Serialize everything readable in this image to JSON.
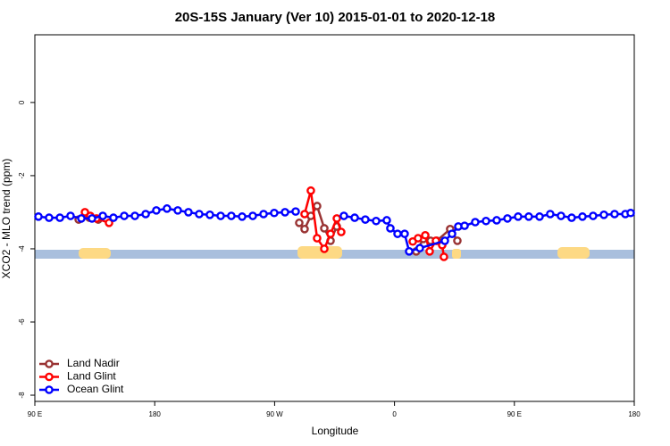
{
  "chart_data": {
    "type": "line",
    "title": "20S-15S January (Ver 10)   2015-01-01 to 2020-12-18",
    "xlabel": "Longitude",
    "ylabel": "XCO2 - MLO trend (ppm)",
    "xlim": [
      90,
      540
    ],
    "xticks": [
      {
        "value": 90,
        "label": "90 E"
      },
      180,
      {
        "value": 270,
        "label": "90 W"
      },
      {
        "value": 360,
        "label": "0"
      },
      {
        "value": 450,
        "label": "90 E"
      },
      {
        "value": 540,
        "label": "180"
      }
    ],
    "ylim": [
      -8.17,
      1.85
    ],
    "yticks": [
      -8,
      -6,
      -4,
      -2,
      0
    ],
    "legend": "lower left",
    "series": [
      {
        "name": "Land Nadir",
        "color": "#993333",
        "x": [
          122.9,
          131.0,
          137.6,
          null,
          288.5,
          292.5,
          297.2,
          301.9,
          307.3,
          312.0,
          316.7,
          null,
          376.3,
          381.7,
          387.1,
          391.8,
          401.8,
          407.2
        ],
        "values": [
          -3.2,
          -3.15,
          -3.2,
          null,
          -3.29,
          -3.46,
          -3.1,
          -2.83,
          -3.44,
          -3.78,
          -3.39,
          null,
          -4.07,
          -3.73,
          -3.78,
          -3.78,
          -3.46,
          -3.78
        ]
      },
      {
        "name": "Land Glint",
        "color": "#ff0000",
        "x": [
          127.6,
          131.6,
          136.3,
          145.7,
          null,
          292.5,
          297.2,
          301.9,
          307.3,
          312.0,
          316.7,
          320.0,
          null,
          373.7,
          377.7,
          383.1,
          386.4,
          391.1,
          395.8,
          397.1
        ],
        "values": [
          -3.0,
          -3.1,
          -3.17,
          -3.29,
          null,
          -3.05,
          -2.41,
          -3.71,
          -4.0,
          -3.59,
          -3.17,
          -3.54,
          null,
          -3.8,
          -3.71,
          -3.63,
          -4.07,
          -3.78,
          -3.9,
          -4.22
        ]
      },
      {
        "name": "Ocean Glint",
        "color": "#0000ff",
        "x": [
          92.7,
          100.7,
          108.8,
          116.8,
          124.9,
          132.9,
          141.0,
          149.0,
          157.1,
          165.1,
          173.2,
          181.2,
          189.2,
          197.3,
          205.3,
          213.4,
          221.4,
          229.5,
          237.5,
          245.6,
          253.6,
          261.7,
          269.7,
          277.8,
          285.8,
          null,
          322.0,
          330.1,
          338.1,
          346.2,
          354.2,
          356.9,
          362.3,
          367.6,
          371.0,
          379.0,
          397.8,
          403.2,
          407.9,
          412.6,
          420.6,
          428.7,
          436.7,
          444.8,
          452.8,
          460.8,
          468.9,
          476.9,
          485.0,
          493.0,
          501.1,
          509.1,
          517.2,
          525.2,
          533.3,
          537.3
        ],
        "values": [
          -3.12,
          -3.15,
          -3.15,
          -3.1,
          -3.17,
          -3.17,
          -3.1,
          -3.15,
          -3.1,
          -3.1,
          -3.05,
          -2.95,
          -2.9,
          -2.95,
          -3.0,
          -3.05,
          -3.07,
          -3.1,
          -3.1,
          -3.12,
          -3.1,
          -3.05,
          -3.02,
          -3.0,
          -2.98,
          null,
          -3.1,
          -3.15,
          -3.2,
          -3.24,
          -3.22,
          -3.44,
          -3.59,
          -3.59,
          -4.07,
          -3.98,
          -3.78,
          -3.59,
          -3.39,
          -3.37,
          -3.27,
          -3.24,
          -3.22,
          -3.17,
          -3.12,
          -3.12,
          -3.12,
          -3.05,
          -3.1,
          -3.15,
          -3.12,
          -3.1,
          -3.07,
          -3.05,
          -3.05,
          -3.02
        ]
      }
    ]
  }
}
